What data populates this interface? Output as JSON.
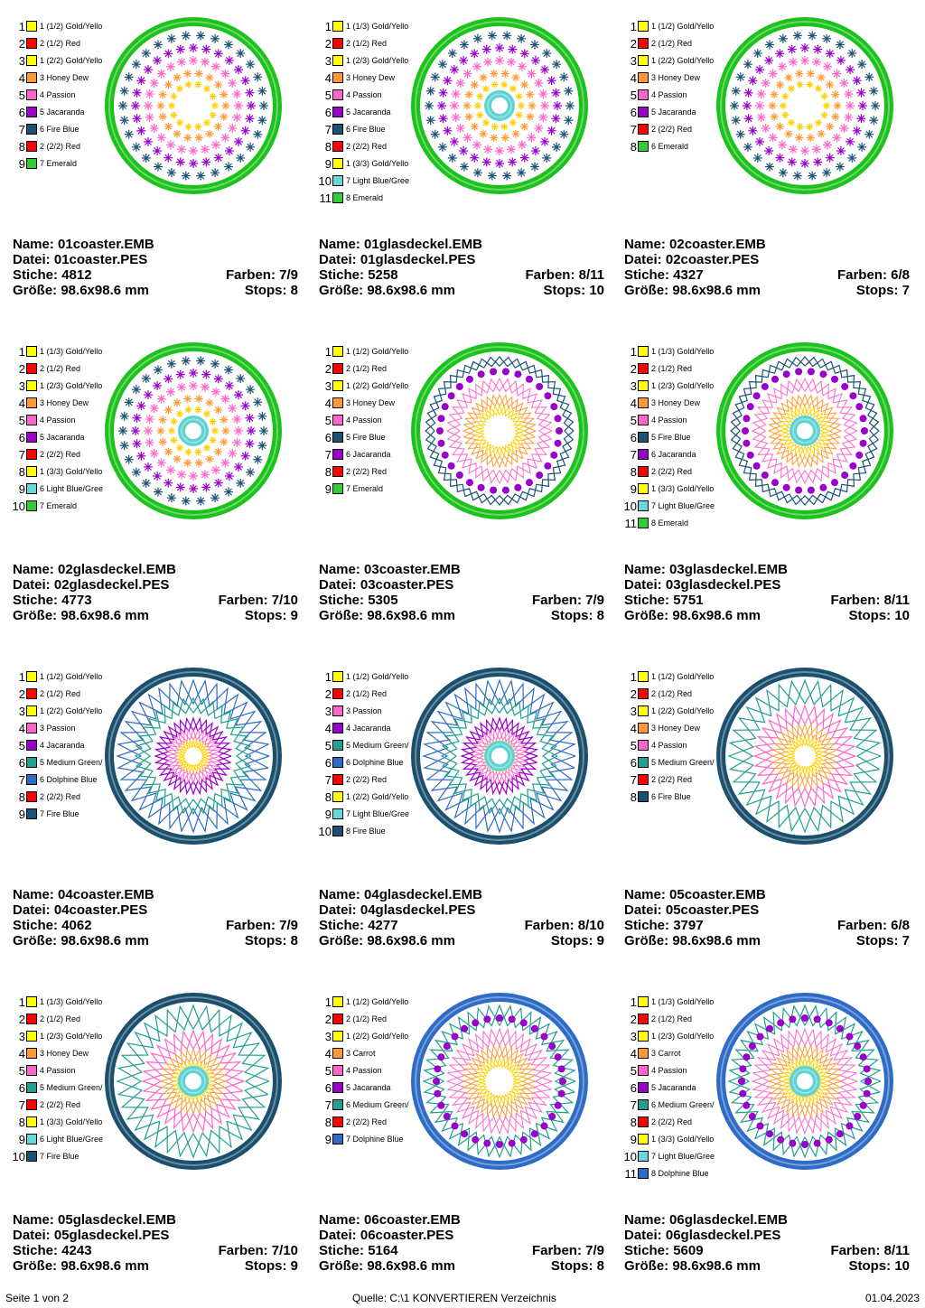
{
  "labels": {
    "name": "Name:",
    "datei": "Datei:",
    "stiche": "Stiche:",
    "farben": "Farben:",
    "groesse": "Größe:",
    "stops": "Stops:"
  },
  "designs": [
    {
      "name": "01coaster.EMB",
      "datei": "01coaster.PES",
      "stiche": "4812",
      "farben": "7/9",
      "groesse": "98.6x98.6 mm",
      "stops": "8",
      "frame": "#1cc21c",
      "center": false,
      "style": "stars",
      "threads": [
        {
          "num": "1",
          "label": "1 (1/2) Gold/Yello",
          "color": "#ffff00"
        },
        {
          "num": "2",
          "label": "2 (1/2) Red",
          "color": "#ff0000"
        },
        {
          "num": "3",
          "label": "1 (2/2) Gold/Yello",
          "color": "#ffff00"
        },
        {
          "num": "4",
          "label": "3 Honey Dew",
          "color": "#ff9933"
        },
        {
          "num": "5",
          "label": "4 Passion",
          "color": "#ff66cc"
        },
        {
          "num": "6",
          "label": "5 Jacaranda",
          "color": "#9900cc"
        },
        {
          "num": "7",
          "label": "6 Fire Blue",
          "color": "#1a5276"
        },
        {
          "num": "8",
          "label": "2 (2/2) Red",
          "color": "#ff0000"
        },
        {
          "num": "9",
          "label": "7 Emerald",
          "color": "#33cc33"
        }
      ]
    },
    {
      "name": "01glasdeckel.EMB",
      "datei": "01glasdeckel.PES",
      "stiche": "5258",
      "farben": "8/11",
      "groesse": "98.6x98.6 mm",
      "stops": "10",
      "frame": "#1cc21c",
      "center": true,
      "style": "stars",
      "threads": [
        {
          "num": "1",
          "label": "1 (1/3) Gold/Yello",
          "color": "#ffff00"
        },
        {
          "num": "2",
          "label": "2 (1/2) Red",
          "color": "#ff0000"
        },
        {
          "num": "3",
          "label": "1 (2/3) Gold/Yello",
          "color": "#ffff00"
        },
        {
          "num": "4",
          "label": "3 Honey Dew",
          "color": "#ff9933"
        },
        {
          "num": "5",
          "label": "4 Passion",
          "color": "#ff66cc"
        },
        {
          "num": "6",
          "label": "5 Jacaranda",
          "color": "#9900cc"
        },
        {
          "num": "7",
          "label": "6 Fire Blue",
          "color": "#1a5276"
        },
        {
          "num": "8",
          "label": "2 (2/2) Red",
          "color": "#ff0000"
        },
        {
          "num": "9",
          "label": "1 (3/3) Gold/Yello",
          "color": "#ffff00"
        },
        {
          "num": "10",
          "label": "7 Light Blue/Gree",
          "color": "#66d9d9"
        },
        {
          "num": "11",
          "label": "8 Emerald",
          "color": "#33cc33"
        }
      ]
    },
    {
      "name": "02coaster.EMB",
      "datei": "02coaster.PES",
      "stiche": "4327",
      "farben": "6/8",
      "groesse": "98.6x98.6 mm",
      "stops": "7",
      "frame": "#1cc21c",
      "center": false,
      "style": "stars",
      "threads": [
        {
          "num": "1",
          "label": "1 (1/2) Gold/Yello",
          "color": "#ffff00"
        },
        {
          "num": "2",
          "label": "2 (1/2) Red",
          "color": "#ff0000"
        },
        {
          "num": "3",
          "label": "1 (2/2) Gold/Yello",
          "color": "#ffff00"
        },
        {
          "num": "4",
          "label": "3 Honey Dew",
          "color": "#ff9933"
        },
        {
          "num": "5",
          "label": "4 Passion",
          "color": "#ff66cc"
        },
        {
          "num": "6",
          "label": "5 Jacaranda",
          "color": "#9900cc"
        },
        {
          "num": "7",
          "label": "2 (2/2) Red",
          "color": "#ff0000"
        },
        {
          "num": "8",
          "label": "6 Emerald",
          "color": "#33cc33"
        }
      ]
    },
    {
      "name": "02glasdeckel.EMB",
      "datei": "02glasdeckel.PES",
      "stiche": "4773",
      "farben": "7/10",
      "groesse": "98.6x98.6 mm",
      "stops": "9",
      "frame": "#1cc21c",
      "center": true,
      "style": "stars",
      "threads": [
        {
          "num": "1",
          "label": "1 (1/3) Gold/Yello",
          "color": "#ffff00"
        },
        {
          "num": "2",
          "label": "2 (1/2) Red",
          "color": "#ff0000"
        },
        {
          "num": "3",
          "label": "1 (2/3) Gold/Yello",
          "color": "#ffff00"
        },
        {
          "num": "4",
          "label": "3 Honey Dew",
          "color": "#ff9933"
        },
        {
          "num": "5",
          "label": "4 Passion",
          "color": "#ff66cc"
        },
        {
          "num": "6",
          "label": "5 Jacaranda",
          "color": "#9900cc"
        },
        {
          "num": "7",
          "label": "2 (2/2) Red",
          "color": "#ff0000"
        },
        {
          "num": "8",
          "label": "1 (3/3) Gold/Yello",
          "color": "#ffff00"
        },
        {
          "num": "9",
          "label": "6 Light Blue/Gree",
          "color": "#66d9d9"
        },
        {
          "num": "10",
          "label": "7 Emerald",
          "color": "#33cc33"
        }
      ]
    },
    {
      "name": "03coaster.EMB",
      "datei": "03coaster.PES",
      "stiche": "5305",
      "farben": "7/9",
      "groesse": "98.6x98.6 mm",
      "stops": "8",
      "frame": "#1cc21c",
      "center": false,
      "style": "dots",
      "threads": [
        {
          "num": "1",
          "label": "1 (1/2) Gold/Yello",
          "color": "#ffff00"
        },
        {
          "num": "2",
          "label": "2 (1/2) Red",
          "color": "#ff0000"
        },
        {
          "num": "3",
          "label": "1 (2/2) Gold/Yello",
          "color": "#ffff00"
        },
        {
          "num": "4",
          "label": "3 Honey Dew",
          "color": "#ff9933"
        },
        {
          "num": "5",
          "label": "4 Passion",
          "color": "#ff66cc"
        },
        {
          "num": "6",
          "label": "5 Fire Blue",
          "color": "#1a5276"
        },
        {
          "num": "7",
          "label": "6 Jacaranda",
          "color": "#9900cc"
        },
        {
          "num": "8",
          "label": "2 (2/2) Red",
          "color": "#ff0000"
        },
        {
          "num": "9",
          "label": "7 Emerald",
          "color": "#33cc33"
        }
      ]
    },
    {
      "name": "03glasdeckel.EMB",
      "datei": "03glasdeckel.PES",
      "stiche": "5751",
      "farben": "8/11",
      "groesse": "98.6x98.6 mm",
      "stops": "10",
      "frame": "#1cc21c",
      "center": true,
      "style": "dots",
      "threads": [
        {
          "num": "1",
          "label": "1 (1/3) Gold/Yello",
          "color": "#ffff00"
        },
        {
          "num": "2",
          "label": "2 (1/2) Red",
          "color": "#ff0000"
        },
        {
          "num": "3",
          "label": "1 (2/3) Gold/Yello",
          "color": "#ffff00"
        },
        {
          "num": "4",
          "label": "3 Honey Dew",
          "color": "#ff9933"
        },
        {
          "num": "5",
          "label": "4 Passion",
          "color": "#ff66cc"
        },
        {
          "num": "6",
          "label": "5 Fire Blue",
          "color": "#1a5276"
        },
        {
          "num": "7",
          "label": "6 Jacaranda",
          "color": "#9900cc"
        },
        {
          "num": "8",
          "label": "2 (2/2) Red",
          "color": "#ff0000"
        },
        {
          "num": "9",
          "label": "1 (3/3) Gold/Yello",
          "color": "#ffff00"
        },
        {
          "num": "10",
          "label": "7 Light Blue/Gree",
          "color": "#66d9d9"
        },
        {
          "num": "11",
          "label": "8 Emerald",
          "color": "#33cc33"
        }
      ]
    },
    {
      "name": "04coaster.EMB",
      "datei": "04coaster.PES",
      "stiche": "4062",
      "farben": "7/9",
      "groesse": "98.6x98.6 mm",
      "stops": "8",
      "frame": "#1a4f6e",
      "center": false,
      "style": "zigzag",
      "threads": [
        {
          "num": "1",
          "label": "1 (1/2) Gold/Yello",
          "color": "#ffff00"
        },
        {
          "num": "2",
          "label": "2 (1/2) Red",
          "color": "#ff0000"
        },
        {
          "num": "3",
          "label": "1 (2/2) Gold/Yello",
          "color": "#ffff00"
        },
        {
          "num": "4",
          "label": "3 Passion",
          "color": "#ff66cc"
        },
        {
          "num": "5",
          "label": "4 Jacaranda",
          "color": "#9900cc"
        },
        {
          "num": "6",
          "label": "5 Medium Green/",
          "color": "#20a090"
        },
        {
          "num": "7",
          "label": "6 Dolphine Blue",
          "color": "#2e6bc6"
        },
        {
          "num": "8",
          "label": "2 (2/2) Red",
          "color": "#ff0000"
        },
        {
          "num": "9",
          "label": "7 Fire Blue",
          "color": "#1a5276"
        }
      ]
    },
    {
      "name": "04glasdeckel.EMB",
      "datei": "04glasdeckel.PES",
      "stiche": "4277",
      "farben": "8/10",
      "groesse": "98.6x98.6 mm",
      "stops": "9",
      "frame": "#1a4f6e",
      "center": true,
      "style": "zigzag",
      "threads": [
        {
          "num": "1",
          "label": "1 (1/2) Gold/Yello",
          "color": "#ffff00"
        },
        {
          "num": "2",
          "label": "2 (1/2) Red",
          "color": "#ff0000"
        },
        {
          "num": "3",
          "label": "3 Passion",
          "color": "#ff66cc"
        },
        {
          "num": "4",
          "label": "4 Jacaranda",
          "color": "#9900cc"
        },
        {
          "num": "5",
          "label": "5 Medium Green/",
          "color": "#20a090"
        },
        {
          "num": "6",
          "label": "6 Dolphine Blue",
          "color": "#2e6bc6"
        },
        {
          "num": "7",
          "label": "2 (2/2) Red",
          "color": "#ff0000"
        },
        {
          "num": "8",
          "label": "1 (2/2) Gold/Yello",
          "color": "#ffff00"
        },
        {
          "num": "9",
          "label": "7 Light Blue/Gree",
          "color": "#66d9d9"
        },
        {
          "num": "10",
          "label": "8 Fire Blue",
          "color": "#1a5276"
        }
      ]
    },
    {
      "name": "05coaster.EMB",
      "datei": "05coaster.PES",
      "stiche": "3797",
      "farben": "6/8",
      "groesse": "98.6x98.6 mm",
      "stops": "7",
      "frame": "#1a4f6e",
      "center": false,
      "style": "zigzag2",
      "threads": [
        {
          "num": "1",
          "label": "1 (1/2) Gold/Yello",
          "color": "#ffff00"
        },
        {
          "num": "2",
          "label": "2 (1/2) Red",
          "color": "#ff0000"
        },
        {
          "num": "3",
          "label": "1 (2/2) Gold/Yello",
          "color": "#ffff00"
        },
        {
          "num": "4",
          "label": "3 Honey Dew",
          "color": "#ff9933"
        },
        {
          "num": "5",
          "label": "4 Passion",
          "color": "#ff66cc"
        },
        {
          "num": "6",
          "label": "5 Medium Green/",
          "color": "#20a090"
        },
        {
          "num": "7",
          "label": "2 (2/2) Red",
          "color": "#ff0000"
        },
        {
          "num": "8",
          "label": "6 Fire Blue",
          "color": "#1a5276"
        }
      ]
    },
    {
      "name": "05glasdeckel.EMB",
      "datei": "05glasdeckel.PES",
      "stiche": "4243",
      "farben": "7/10",
      "groesse": "98.6x98.6 mm",
      "stops": "9",
      "frame": "#1a4f6e",
      "center": true,
      "style": "zigzag2",
      "threads": [
        {
          "num": "1",
          "label": "1 (1/3) Gold/Yello",
          "color": "#ffff00"
        },
        {
          "num": "2",
          "label": "2 (1/2) Red",
          "color": "#ff0000"
        },
        {
          "num": "3",
          "label": "1 (2/3) Gold/Yello",
          "color": "#ffff00"
        },
        {
          "num": "4",
          "label": "3 Honey Dew",
          "color": "#ff9933"
        },
        {
          "num": "5",
          "label": "4 Passion",
          "color": "#ff66cc"
        },
        {
          "num": "6",
          "label": "5 Medium Green/",
          "color": "#20a090"
        },
        {
          "num": "7",
          "label": "2 (2/2) Red",
          "color": "#ff0000"
        },
        {
          "num": "8",
          "label": "1 (3/3) Gold/Yello",
          "color": "#ffff00"
        },
        {
          "num": "9",
          "label": "6 Light Blue/Gree",
          "color": "#66d9d9"
        },
        {
          "num": "10",
          "label": "7 Fire Blue",
          "color": "#1a5276"
        }
      ]
    },
    {
      "name": "06coaster.EMB",
      "datei": "06coaster.PES",
      "stiche": "5164",
      "farben": "7/9",
      "groesse": "98.6x98.6 mm",
      "stops": "8",
      "frame": "#2e6bc6",
      "center": false,
      "style": "dots2",
      "threads": [
        {
          "num": "1",
          "label": "1 (1/2) Gold/Yello",
          "color": "#ffff00"
        },
        {
          "num": "2",
          "label": "2 (1/2) Red",
          "color": "#ff0000"
        },
        {
          "num": "3",
          "label": "1 (2/2) Gold/Yello",
          "color": "#ffff00"
        },
        {
          "num": "4",
          "label": "3 Carrot",
          "color": "#ff9933"
        },
        {
          "num": "5",
          "label": "4 Passion",
          "color": "#ff66cc"
        },
        {
          "num": "6",
          "label": "5 Jacaranda",
          "color": "#9900cc"
        },
        {
          "num": "7",
          "label": "6 Medium Green/",
          "color": "#20a090"
        },
        {
          "num": "8",
          "label": "2 (2/2) Red",
          "color": "#ff0000"
        },
        {
          "num": "9",
          "label": "7 Dolphine Blue",
          "color": "#2e6bc6"
        }
      ]
    },
    {
      "name": "06glasdeckel.EMB",
      "datei": "06glasdeckel.PES",
      "stiche": "5609",
      "farben": "8/11",
      "groesse": "98.6x98.6 mm",
      "stops": "10",
      "frame": "#2e6bc6",
      "center": true,
      "style": "dots2",
      "threads": [
        {
          "num": "1",
          "label": "1 (1/3) Gold/Yello",
          "color": "#ffff00"
        },
        {
          "num": "2",
          "label": "2 (1/2) Red",
          "color": "#ff0000"
        },
        {
          "num": "3",
          "label": "1 (2/3) Gold/Yello",
          "color": "#ffff00"
        },
        {
          "num": "4",
          "label": "3 Carrot",
          "color": "#ff9933"
        },
        {
          "num": "5",
          "label": "4 Passion",
          "color": "#ff66cc"
        },
        {
          "num": "6",
          "label": "5 Jacaranda",
          "color": "#9900cc"
        },
        {
          "num": "7",
          "label": "6 Medium Green/",
          "color": "#20a090"
        },
        {
          "num": "8",
          "label": "2 (2/2) Red",
          "color": "#ff0000"
        },
        {
          "num": "9",
          "label": "1 (3/3) Gold/Yello",
          "color": "#ffff00"
        },
        {
          "num": "10",
          "label": "7 Light Blue/Gree",
          "color": "#66d9d9"
        },
        {
          "num": "11",
          "label": "8 Dolphine Blue",
          "color": "#2e6bc6"
        }
      ]
    }
  ],
  "footer": {
    "page": "Seite 1 von 2",
    "source": "Quelle: C:\\1 KONVERTIEREN Verzeichnis",
    "date": "01.04.2023"
  }
}
